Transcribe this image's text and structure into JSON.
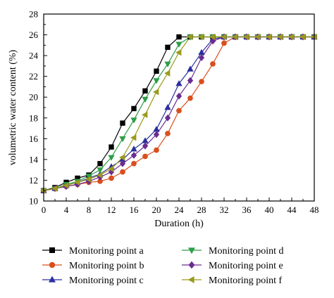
{
  "chart_data": {
    "type": "line",
    "title": "",
    "xlabel": "Duration (h)",
    "ylabel": "volumetric water content (%)",
    "xlim": [
      0,
      48
    ],
    "ylim": [
      10,
      28
    ],
    "xticks": [
      0,
      4,
      8,
      12,
      16,
      20,
      24,
      28,
      32,
      36,
      40,
      44,
      48
    ],
    "yticks": [
      10,
      12,
      14,
      16,
      18,
      20,
      22,
      24,
      26,
      28
    ],
    "grid": false,
    "legend_position": "bottom",
    "series": [
      {
        "name": "Monitoring point a",
        "color": "#000000",
        "marker": "square",
        "x": [
          0,
          2,
          4,
          6,
          8,
          10,
          12,
          14,
          16,
          18,
          20,
          22,
          24,
          26,
          28,
          30,
          32,
          34,
          36,
          38,
          40,
          42,
          44,
          46,
          48
        ],
        "y": [
          11.0,
          11.3,
          11.8,
          12.2,
          12.5,
          13.6,
          15.2,
          17.5,
          18.9,
          20.6,
          22.5,
          24.8,
          25.8,
          25.8,
          25.8,
          25.8,
          25.8,
          25.8,
          25.8,
          25.8,
          25.8,
          25.8,
          25.8,
          25.8,
          25.8
        ]
      },
      {
        "name": "Monitoring point b",
        "color": "#d94f1e",
        "marker": "circle",
        "x": [
          0,
          2,
          4,
          6,
          8,
          10,
          12,
          14,
          16,
          18,
          20,
          22,
          24,
          26,
          28,
          30,
          32,
          34,
          36,
          38,
          40,
          42,
          44,
          46,
          48
        ],
        "y": [
          11.0,
          11.2,
          11.4,
          11.6,
          11.8,
          11.9,
          12.2,
          12.8,
          13.6,
          14.3,
          14.9,
          16.5,
          18.7,
          19.9,
          21.5,
          23.2,
          25.2,
          25.8,
          25.8,
          25.8,
          25.8,
          25.8,
          25.8,
          25.8,
          25.8
        ]
      },
      {
        "name": "Monitoring point c",
        "color": "#2b2f9e",
        "marker": "triangle-up",
        "x": [
          0,
          2,
          4,
          6,
          8,
          10,
          12,
          14,
          16,
          18,
          20,
          22,
          24,
          26,
          28,
          30,
          32,
          34,
          36,
          38,
          40,
          42,
          44,
          46,
          48
        ],
        "y": [
          11.0,
          11.2,
          11.5,
          11.8,
          12.2,
          12.6,
          13.3,
          14.0,
          15.0,
          15.8,
          16.9,
          19.0,
          21.3,
          22.7,
          24.3,
          25.6,
          25.8,
          25.8,
          25.8,
          25.8,
          25.8,
          25.8,
          25.8,
          25.8,
          25.8
        ]
      },
      {
        "name": "Monitoring point d",
        "color": "#2e9e47",
        "marker": "triangle-down",
        "x": [
          0,
          2,
          4,
          6,
          8,
          10,
          12,
          14,
          16,
          18,
          20,
          22,
          24,
          26,
          28,
          30,
          32,
          34,
          36,
          38,
          40,
          42,
          44,
          46,
          48
        ],
        "y": [
          11.0,
          11.2,
          11.6,
          11.9,
          12.4,
          13.0,
          14.2,
          16.0,
          17.8,
          19.8,
          21.6,
          23.2,
          25.1,
          25.8,
          25.8,
          25.8,
          25.8,
          25.8,
          25.8,
          25.8,
          25.8,
          25.8,
          25.8,
          25.8,
          25.8
        ]
      },
      {
        "name": "Monitoring point e",
        "color": "#6a2c91",
        "marker": "diamond",
        "x": [
          0,
          2,
          4,
          6,
          8,
          10,
          12,
          14,
          16,
          18,
          20,
          22,
          24,
          26,
          28,
          30,
          32,
          34,
          36,
          38,
          40,
          42,
          44,
          46,
          48
        ],
        "y": [
          11.0,
          11.2,
          11.4,
          11.6,
          11.9,
          12.3,
          12.8,
          13.6,
          14.4,
          15.3,
          16.4,
          18.0,
          20.1,
          21.6,
          23.8,
          25.4,
          25.8,
          25.8,
          25.8,
          25.8,
          25.8,
          25.8,
          25.8,
          25.8,
          25.8
        ]
      },
      {
        "name": "Monitoring point f",
        "color": "#9b9a1e",
        "marker": "triangle-left",
        "x": [
          0,
          2,
          4,
          6,
          8,
          10,
          12,
          14,
          16,
          18,
          20,
          22,
          24,
          26,
          28,
          30,
          32,
          34,
          36,
          38,
          40,
          42,
          44,
          46,
          48
        ],
        "y": [
          11.0,
          11.2,
          11.5,
          11.8,
          12.1,
          12.5,
          13.1,
          14.2,
          16.1,
          18.3,
          20.5,
          22.3,
          24.3,
          25.8,
          25.8,
          25.8,
          25.8,
          25.8,
          25.8,
          25.8,
          25.8,
          25.8,
          25.8,
          25.8,
          25.8
        ]
      }
    ]
  }
}
